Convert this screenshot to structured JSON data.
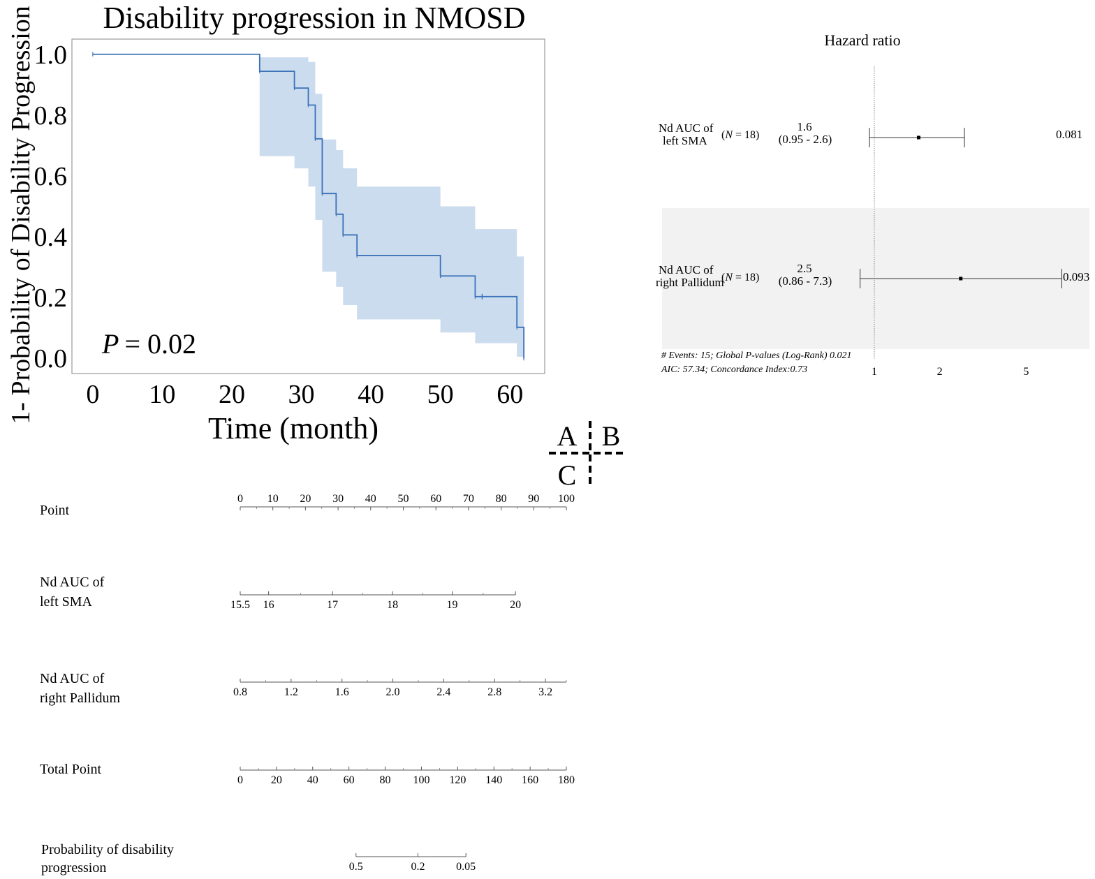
{
  "panel_labels": {
    "a": "A",
    "b": "B",
    "c": "C"
  },
  "chart_data": [
    {
      "type": "line",
      "subtype": "kaplan-meier step curve with confidence band",
      "title": "Disability progression in NMOSD",
      "xlabel": "Time (month)",
      "ylabel": "1- Probability of Disability Progression",
      "xlim": [
        -3,
        65
      ],
      "ylim": [
        -0.05,
        1.05
      ],
      "xticks": [
        0,
        10,
        20,
        30,
        40,
        50,
        60
      ],
      "xtick_labels": [
        "0",
        "10",
        "20",
        "30",
        "40",
        "50",
        "60"
      ],
      "yticks": [
        0.0,
        0.2,
        0.4,
        0.6,
        0.8,
        1.0
      ],
      "ytick_labels": [
        "0.0",
        "0.2",
        "0.4",
        "0.6",
        "0.8",
        "1.0"
      ],
      "color": "#3a72b8",
      "band_color": "#c9daee",
      "annotation": {
        "p_symbol": "P",
        "p_text": "= 0.02"
      },
      "steps": [
        {
          "t": 0,
          "s": 1.0,
          "lo": 1.0,
          "hi": 1.0
        },
        {
          "t": 24,
          "s": 0.944,
          "lo": 0.665,
          "hi": 0.99
        },
        {
          "t": 29,
          "s": 0.889,
          "lo": 0.625,
          "hi": 0.99
        },
        {
          "t": 31,
          "s": 0.833,
          "lo": 0.565,
          "hi": 0.975
        },
        {
          "t": 32,
          "s": 0.722,
          "lo": 0.455,
          "hi": 0.87
        },
        {
          "t": 33,
          "s": 0.542,
          "lo": 0.285,
          "hi": 0.72
        },
        {
          "t": 35,
          "s": 0.474,
          "lo": 0.235,
          "hi": 0.685
        },
        {
          "t": 36,
          "s": 0.406,
          "lo": 0.175,
          "hi": 0.625
        },
        {
          "t": 38,
          "s": 0.338,
          "lo": 0.128,
          "hi": 0.565
        },
        {
          "t": 50,
          "s": 0.271,
          "lo": 0.085,
          "hi": 0.5
        },
        {
          "t": 55,
          "s": 0.203,
          "lo": 0.05,
          "hi": 0.425
        },
        {
          "t": 61,
          "s": 0.102,
          "lo": 0.005,
          "hi": 0.335
        },
        {
          "t": 62,
          "s": 0.0,
          "lo": 0.0,
          "hi": 0.0
        }
      ],
      "censor_marks": [
        {
          "t": 56,
          "s": 0.203
        }
      ]
    },
    {
      "type": "forest",
      "title": "Hazard ratio",
      "scale": "log",
      "xlim": [
        0.8,
        8
      ],
      "xticks": [
        1,
        2,
        5
      ],
      "xtick_labels": [
        "1",
        "2",
        "5"
      ],
      "rows": [
        {
          "label_line1": "Nd AUC of",
          "label_line2": "left SMA",
          "n_prefix": "(",
          "n_symbol": "N",
          "n_suffix": " = 18)",
          "hr": 1.6,
          "hr_text": "1.6",
          "ci": [
            0.95,
            2.6
          ],
          "ci_text": "(0.95 - 2.6)",
          "p_text": "0.081",
          "shaded": false
        },
        {
          "label_line1": "Nd AUC of",
          "label_line2": "right Pallidum",
          "n_prefix": "(",
          "n_symbol": "N",
          "n_suffix": " = 18)",
          "hr": 2.5,
          "hr_text": "2.5",
          "ci": [
            0.86,
            7.3
          ],
          "ci_text": "(0.86 - 7.3)",
          "p_text": "0.093",
          "shaded": true
        }
      ],
      "footer_line1": "# Events: 15; Global P-values (Log-Rank) 0.021",
      "footer_line2": "AIC: 57.34; Concordance Index:0.73"
    },
    {
      "type": "nomogram",
      "scales": [
        {
          "label": "Point",
          "label2": "",
          "tick_values": [
            "0",
            "10",
            "20",
            "30",
            "40",
            "50",
            "60",
            "70",
            "80",
            "90",
            "100"
          ],
          "tick_points": [
            0,
            10,
            20,
            30,
            40,
            50,
            60,
            70,
            80,
            90,
            100
          ],
          "minor_points": [
            5,
            15,
            25,
            35,
            45,
            55,
            65,
            75,
            85,
            95
          ],
          "labels_above": true
        },
        {
          "label": "Nd AUC of",
          "label2": "left SMA",
          "tick_values": [
            "15.5",
            "16",
            "17",
            "18",
            "19",
            "20"
          ],
          "tick_points": [
            0,
            8.7,
            28.3,
            46.7,
            65.0,
            84.4
          ],
          "minor_points": [
            18.5,
            37.5,
            56,
            74.5
          ],
          "labels_above": false
        },
        {
          "label": "Nd AUC of",
          "label2": "right Pallidum",
          "tick_values": [
            "0.8",
            "1.2",
            "1.6",
            "2.0",
            "2.4",
            "2.8",
            "3.2"
          ],
          "tick_points": [
            0,
            15.6,
            31.2,
            46.8,
            62.4,
            78.0,
            93.6
          ],
          "minor_points": [
            7.8,
            23.4,
            39.0,
            54.6,
            70.2,
            85.8,
            100
          ],
          "labels_above": false
        },
        {
          "label": "Total Point",
          "label2": "",
          "tick_values": [
            "0",
            "20",
            "40",
            "60",
            "80",
            "100",
            "120",
            "140",
            "160",
            "180"
          ],
          "tick_points": [
            0,
            11.11,
            22.22,
            33.33,
            44.44,
            55.56,
            66.67,
            77.78,
            88.89,
            100
          ],
          "minor_points": [
            5.56,
            16.67,
            27.78,
            38.89,
            50,
            61.11,
            72.22,
            83.33,
            94.44
          ],
          "labels_above": false
        },
        {
          "label": "Probability of disability",
          "label2": "progression",
          "tick_values": [
            "0.5",
            "0.2",
            "0.05"
          ],
          "tick_points": [
            35.5,
            54.5,
            69.2
          ],
          "minor_points": [],
          "labels_above": false
        }
      ]
    }
  ]
}
